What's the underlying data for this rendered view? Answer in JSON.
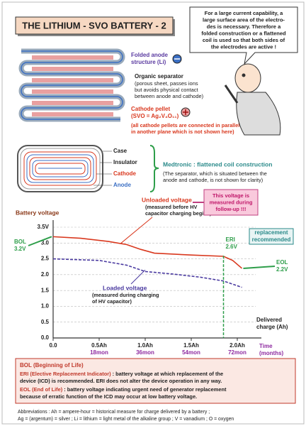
{
  "title": "THE LITHIUM - SVO BATTERY - 2",
  "bubble": [
    "For a large current capability, a",
    "large surface area of the electro-",
    "des is necessary. Therefore a",
    "folded construction or a flattened",
    "coil is used so that both sides of",
    "the electrodes are active !"
  ],
  "folded": {
    "anode": [
      "Folded anode",
      "structure (Li)"
    ],
    "separator": [
      "Organic separator",
      "(porous sheet, passes ions",
      "but  avoids physical contact",
      "between anode and cathode)"
    ],
    "cathode": [
      "Cathode pellet",
      "(SVO = Ag₂V₄O₁₁)"
    ],
    "note": [
      "(all cathode pellets are connected in parallel",
      "in another plane which is not shown here)"
    ]
  },
  "coil": {
    "labels": [
      "Case",
      "Insulator",
      "Cathode",
      "Anode"
    ],
    "heading": "Medtronic : flattened coil construction",
    "note": [
      "(The separator, which is situated between the",
      "anode and cathode, is not shown for clarity)"
    ]
  },
  "chart_data": {
    "type": "line",
    "ylabel": "Battery voltage",
    "xlabel": [
      "Delivered",
      "charge (Ah)"
    ],
    "time_label": [
      "Time",
      "(months)"
    ],
    "xlim": [
      0,
      2.2
    ],
    "ylim": [
      0,
      3.5
    ],
    "yticks": [
      {
        "value": 0,
        "label": "0.0"
      },
      {
        "value": 0.5,
        "label": "0.5"
      },
      {
        "value": 1,
        "label": "1.0"
      },
      {
        "value": 1.5,
        "label": "1.5"
      },
      {
        "value": 2,
        "label": "2.0"
      },
      {
        "value": 2.5,
        "label": "2.5"
      },
      {
        "value": 3,
        "label": "3.0"
      },
      {
        "value": 3.5,
        "label": "3.5V"
      }
    ],
    "xticks": [
      {
        "value": 0,
        "label": "0.0"
      },
      {
        "value": 0.5,
        "label": "0.5Ah"
      },
      {
        "value": 1,
        "label": "1.0Ah"
      },
      {
        "value": 1.5,
        "label": "1.5Ah"
      },
      {
        "value": 2,
        "label": "2.0Ah"
      }
    ],
    "time_ticks": [
      {
        "value": 0.5,
        "label": "18mon"
      },
      {
        "value": 1,
        "label": "36mon"
      },
      {
        "value": 1.5,
        "label": "54mon"
      },
      {
        "value": 2,
        "label": "72mon"
      }
    ],
    "grid": true,
    "series": [
      {
        "name": "Unloaded voltage",
        "color": "#d9381e",
        "dashed": false,
        "x": [
          0,
          0.3,
          0.6,
          0.8,
          0.95,
          1.1,
          1.5,
          1.85,
          1.95,
          2.05
        ],
        "values": [
          3.2,
          3.15,
          3.05,
          2.95,
          2.8,
          2.68,
          2.62,
          2.58,
          2.45,
          2.2
        ]
      },
      {
        "name": "Loaded voltage",
        "color": "#4a3aa0",
        "dashed": true,
        "x": [
          0,
          0.5,
          0.8,
          1.0,
          1.3,
          1.6,
          1.85,
          2.05
        ],
        "values": [
          2.5,
          2.45,
          2.3,
          2.1,
          2.02,
          1.92,
          1.8,
          1.6
        ]
      }
    ],
    "unloaded_note": [
      "(measured before HV",
      "capacitor charging begins)"
    ],
    "loaded_note": [
      "(measured during charging",
      "of HV capacitor)"
    ],
    "followup": [
      "This voltage is",
      "measured during",
      "follow-up !!!"
    ],
    "replacement": [
      "replacement",
      "recommended"
    ],
    "markers": [
      {
        "label": "BOL",
        "value_label": "3.2V",
        "x": 0,
        "y": 3.2,
        "color": "#2e9e4a"
      },
      {
        "label": "ERI",
        "value_label": "2.6V",
        "x": 1.85,
        "y": 2.6,
        "color": "#2e9e4a"
      },
      {
        "label": "EOL",
        "value_label": "2.2V",
        "x": 2.05,
        "y": 2.2,
        "color": "#2e9e4a"
      }
    ]
  },
  "legend_box": {
    "bol": "BOL (Beginning of Life)",
    "eri_term": "ERI (Elective Replacement Indicator)",
    "eri_text": [
      " : battery voltage at which replacement of the",
      "device (ICD) is recommended. ERI does not alter the device operation in any way."
    ],
    "eol_term": "EOL (End of Life)",
    "eol_text": [
      " : battery voltage indicating urgent need of generator replacement",
      "because of erratic function of the ICD may occur at low battery voltage."
    ]
  },
  "abbreviations": [
    "Abbreviations : Ah = ampere-hour = historical measure for charge delivered by a battery ;",
    "Ag = (argentum) = silver ; Li = lithium = light metal of the alkaline group ; V = vanadium ; O = oxygen"
  ]
}
